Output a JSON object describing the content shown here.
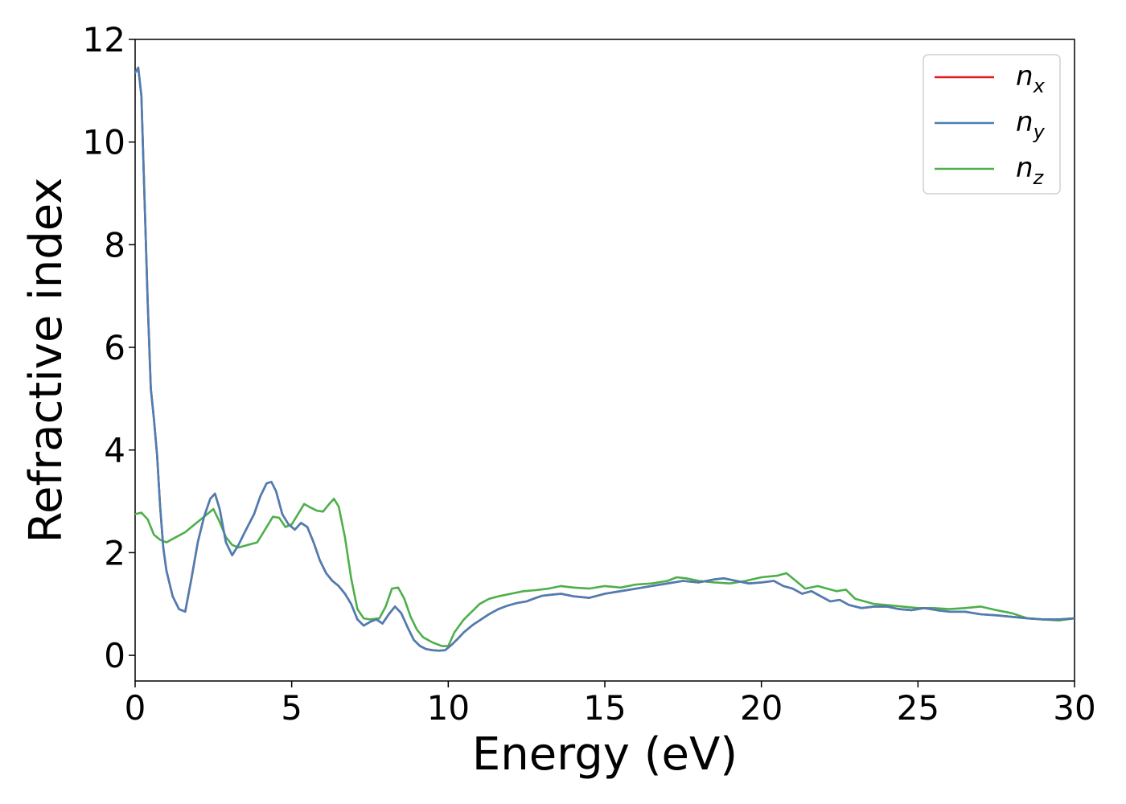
{
  "chart_data": {
    "type": "line",
    "title": "",
    "xlabel": "Energy (eV)",
    "ylabel": "Refractive index",
    "xlim": [
      0,
      30
    ],
    "ylim": [
      -0.5,
      12
    ],
    "xticks": [
      0,
      5,
      10,
      15,
      20,
      25,
      30
    ],
    "yticks": [
      0,
      2,
      4,
      6,
      8,
      10,
      12
    ],
    "grid": false,
    "legend_position": "top-right",
    "series": [
      {
        "name": "n_x",
        "label_base": "n",
        "label_sub": "x",
        "color": "#e41a1c",
        "x": [
          0,
          0.1,
          0.2,
          0.3,
          0.4,
          0.5,
          0.6,
          0.7,
          0.8,
          0.9,
          1.0,
          1.2,
          1.4,
          1.6,
          1.8,
          2.0,
          2.2,
          2.4,
          2.55,
          2.7,
          2.9,
          3.1,
          3.3,
          3.5,
          3.8,
          4.0,
          4.2,
          4.35,
          4.5,
          4.7,
          4.9,
          5.1,
          5.3,
          5.5,
          5.7,
          5.9,
          6.1,
          6.3,
          6.5,
          6.7,
          6.9,
          7.1,
          7.3,
          7.5,
          7.7,
          7.9,
          8.1,
          8.3,
          8.5,
          8.7,
          8.9,
          9.1,
          9.3,
          9.5,
          9.7,
          9.9,
          10.1,
          10.3,
          10.5,
          10.8,
          11.0,
          11.3,
          11.6,
          11.9,
          12.2,
          12.5,
          12.8,
          13.0,
          13.3,
          13.6,
          14.0,
          14.5,
          15.0,
          15.5,
          16.0,
          16.5,
          17.0,
          17.5,
          18.0,
          18.5,
          18.8,
          19.2,
          19.6,
          20.0,
          20.4,
          20.7,
          21.0,
          21.3,
          21.6,
          21.9,
          22.2,
          22.5,
          22.8,
          23.2,
          23.6,
          24.0,
          24.4,
          24.8,
          25.2,
          25.6,
          26.0,
          26.5,
          27.0,
          27.5,
          28.0,
          28.5,
          29.0,
          29.5,
          30.0
        ],
        "y": [
          11.35,
          11.45,
          10.9,
          8.9,
          6.9,
          5.2,
          4.6,
          3.9,
          2.9,
          2.1,
          1.65,
          1.15,
          0.9,
          0.85,
          1.5,
          2.2,
          2.7,
          3.05,
          3.15,
          2.85,
          2.2,
          1.95,
          2.15,
          2.4,
          2.75,
          3.1,
          3.35,
          3.38,
          3.2,
          2.75,
          2.55,
          2.45,
          2.58,
          2.5,
          2.2,
          1.85,
          1.6,
          1.45,
          1.35,
          1.2,
          1.0,
          0.7,
          0.58,
          0.65,
          0.7,
          0.62,
          0.8,
          0.95,
          0.82,
          0.55,
          0.3,
          0.18,
          0.12,
          0.1,
          0.09,
          0.1,
          0.2,
          0.32,
          0.45,
          0.6,
          0.68,
          0.8,
          0.9,
          0.97,
          1.02,
          1.05,
          1.12,
          1.16,
          1.18,
          1.2,
          1.15,
          1.12,
          1.2,
          1.25,
          1.3,
          1.35,
          1.4,
          1.45,
          1.42,
          1.48,
          1.5,
          1.45,
          1.4,
          1.42,
          1.45,
          1.35,
          1.3,
          1.2,
          1.25,
          1.15,
          1.05,
          1.08,
          0.98,
          0.92,
          0.95,
          0.95,
          0.9,
          0.88,
          0.92,
          0.88,
          0.85,
          0.85,
          0.8,
          0.78,
          0.75,
          0.72,
          0.7,
          0.7,
          0.72
        ]
      },
      {
        "name": "n_y",
        "label_base": "n",
        "label_sub": "y",
        "color": "#4a7fb5",
        "x": [
          0,
          0.1,
          0.2,
          0.3,
          0.4,
          0.5,
          0.6,
          0.7,
          0.8,
          0.9,
          1.0,
          1.2,
          1.4,
          1.6,
          1.8,
          2.0,
          2.2,
          2.4,
          2.55,
          2.7,
          2.9,
          3.1,
          3.3,
          3.5,
          3.8,
          4.0,
          4.2,
          4.35,
          4.5,
          4.7,
          4.9,
          5.1,
          5.3,
          5.5,
          5.7,
          5.9,
          6.1,
          6.3,
          6.5,
          6.7,
          6.9,
          7.1,
          7.3,
          7.5,
          7.7,
          7.9,
          8.1,
          8.3,
          8.5,
          8.7,
          8.9,
          9.1,
          9.3,
          9.5,
          9.7,
          9.9,
          10.1,
          10.3,
          10.5,
          10.8,
          11.0,
          11.3,
          11.6,
          11.9,
          12.2,
          12.5,
          12.8,
          13.0,
          13.3,
          13.6,
          14.0,
          14.5,
          15.0,
          15.5,
          16.0,
          16.5,
          17.0,
          17.5,
          18.0,
          18.5,
          18.8,
          19.2,
          19.6,
          20.0,
          20.4,
          20.7,
          21.0,
          21.3,
          21.6,
          21.9,
          22.2,
          22.5,
          22.8,
          23.2,
          23.6,
          24.0,
          24.4,
          24.8,
          25.2,
          25.6,
          26.0,
          26.5,
          27.0,
          27.5,
          28.0,
          28.5,
          29.0,
          29.5,
          30.0
        ],
        "y": [
          11.35,
          11.45,
          10.9,
          8.9,
          6.9,
          5.2,
          4.6,
          3.9,
          2.9,
          2.1,
          1.65,
          1.15,
          0.9,
          0.85,
          1.5,
          2.2,
          2.7,
          3.05,
          3.15,
          2.85,
          2.2,
          1.95,
          2.15,
          2.4,
          2.75,
          3.1,
          3.35,
          3.38,
          3.2,
          2.75,
          2.55,
          2.45,
          2.58,
          2.5,
          2.2,
          1.85,
          1.6,
          1.45,
          1.35,
          1.2,
          1.0,
          0.7,
          0.58,
          0.65,
          0.7,
          0.62,
          0.8,
          0.95,
          0.82,
          0.55,
          0.3,
          0.18,
          0.12,
          0.1,
          0.09,
          0.1,
          0.2,
          0.32,
          0.45,
          0.6,
          0.68,
          0.8,
          0.9,
          0.97,
          1.02,
          1.05,
          1.12,
          1.16,
          1.18,
          1.2,
          1.15,
          1.12,
          1.2,
          1.25,
          1.3,
          1.35,
          1.4,
          1.45,
          1.42,
          1.48,
          1.5,
          1.45,
          1.4,
          1.42,
          1.45,
          1.35,
          1.3,
          1.2,
          1.25,
          1.15,
          1.05,
          1.08,
          0.98,
          0.92,
          0.95,
          0.95,
          0.9,
          0.88,
          0.92,
          0.88,
          0.85,
          0.85,
          0.8,
          0.78,
          0.75,
          0.72,
          0.7,
          0.7,
          0.72
        ]
      },
      {
        "name": "n_z",
        "label_base": "n",
        "label_sub": "z",
        "color": "#4daf4a",
        "x": [
          0,
          0.2,
          0.4,
          0.6,
          0.8,
          1.0,
          1.3,
          1.6,
          1.9,
          2.2,
          2.5,
          2.7,
          2.9,
          3.1,
          3.3,
          3.6,
          3.9,
          4.1,
          4.4,
          4.6,
          4.8,
          5.0,
          5.2,
          5.4,
          5.6,
          5.8,
          6.0,
          6.2,
          6.35,
          6.5,
          6.7,
          6.9,
          7.1,
          7.3,
          7.5,
          7.8,
          8.0,
          8.2,
          8.4,
          8.6,
          8.8,
          9.0,
          9.2,
          9.5,
          9.8,
          10.0,
          10.2,
          10.5,
          10.8,
          11.0,
          11.3,
          11.6,
          12.0,
          12.4,
          12.8,
          13.2,
          13.6,
          14.0,
          14.5,
          15.0,
          15.5,
          16.0,
          16.5,
          17.0,
          17.3,
          17.6,
          18.0,
          18.5,
          19.0,
          19.5,
          20.0,
          20.5,
          20.8,
          21.1,
          21.4,
          21.8,
          22.1,
          22.4,
          22.7,
          23.0,
          23.3,
          23.6,
          24.0,
          24.5,
          25.0,
          25.5,
          26.0,
          26.5,
          27.0,
          27.5,
          28.0,
          28.5,
          29.0,
          29.5,
          30.0
        ],
        "y": [
          2.75,
          2.78,
          2.65,
          2.35,
          2.25,
          2.2,
          2.3,
          2.4,
          2.55,
          2.7,
          2.85,
          2.6,
          2.3,
          2.15,
          2.1,
          2.15,
          2.2,
          2.4,
          2.7,
          2.68,
          2.5,
          2.55,
          2.75,
          2.95,
          2.88,
          2.82,
          2.8,
          2.95,
          3.05,
          2.9,
          2.3,
          1.5,
          0.9,
          0.72,
          0.7,
          0.72,
          0.95,
          1.3,
          1.32,
          1.1,
          0.75,
          0.5,
          0.35,
          0.25,
          0.18,
          0.18,
          0.45,
          0.7,
          0.88,
          1.0,
          1.1,
          1.15,
          1.2,
          1.25,
          1.27,
          1.3,
          1.35,
          1.32,
          1.3,
          1.35,
          1.32,
          1.38,
          1.4,
          1.45,
          1.52,
          1.5,
          1.45,
          1.42,
          1.4,
          1.45,
          1.52,
          1.55,
          1.6,
          1.45,
          1.3,
          1.35,
          1.3,
          1.25,
          1.28,
          1.1,
          1.05,
          1.0,
          0.98,
          0.95,
          0.92,
          0.92,
          0.9,
          0.92,
          0.95,
          0.88,
          0.82,
          0.72,
          0.7,
          0.68,
          0.72
        ]
      }
    ]
  }
}
